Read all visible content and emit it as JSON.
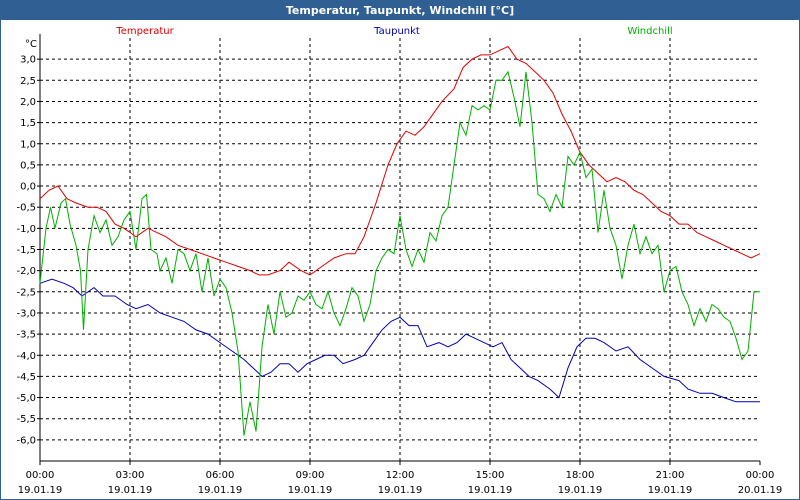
{
  "window": {
    "title": "Temperatur, Taupunkt, Windchill [°C]"
  },
  "chart_data": {
    "type": "line",
    "ylabel": "°C",
    "ylim": [
      -6.5,
      3.5
    ],
    "y_ticks": [
      3.0,
      2.5,
      2.0,
      1.5,
      1.0,
      0.5,
      0.0,
      -0.5,
      -1.0,
      -1.5,
      -2.0,
      -2.5,
      -3.0,
      -3.5,
      -4.0,
      -4.5,
      -5.0,
      -5.5,
      -6.0
    ],
    "y_tick_labels": [
      "3,0",
      "2,5",
      "2,0",
      "1,5",
      "1,0",
      "0,5",
      "0,0",
      "-0,5",
      "-1,0",
      "-1,5",
      "-2,0",
      "-2,5",
      "-3,0",
      "-3,5",
      "-4,0",
      "-4,5",
      "-5,0",
      "-5,5",
      "-6,0"
    ],
    "xlim": [
      0,
      24
    ],
    "x_ticks": [
      {
        "hour": 0,
        "time": "00:00",
        "date": "19.01.19"
      },
      {
        "hour": 3,
        "time": "03:00",
        "date": "19.01.19"
      },
      {
        "hour": 6,
        "time": "06:00",
        "date": "19.01.19"
      },
      {
        "hour": 9,
        "time": "09:00",
        "date": "19.01.19"
      },
      {
        "hour": 12,
        "time": "12:00",
        "date": "19.01.19"
      },
      {
        "hour": 15,
        "time": "15:00",
        "date": "19.01.19"
      },
      {
        "hour": 18,
        "time": "18:00",
        "date": "19.01.19"
      },
      {
        "hour": 21,
        "time": "21:00",
        "date": "19.01.19"
      },
      {
        "hour": 24,
        "time": "00:00",
        "date": "20.01.19"
      }
    ],
    "grid": true,
    "series": [
      {
        "name": "Temperatur",
        "color": "#e00000",
        "points": [
          [
            0,
            -0.3
          ],
          [
            0.3,
            -0.1
          ],
          [
            0.6,
            0.0
          ],
          [
            0.9,
            -0.3
          ],
          [
            1.2,
            -0.4
          ],
          [
            1.6,
            -0.5
          ],
          [
            1.9,
            -0.5
          ],
          [
            2.2,
            -0.6
          ],
          [
            2.5,
            -0.9
          ],
          [
            2.8,
            -1.0
          ],
          [
            3.2,
            -1.2
          ],
          [
            3.6,
            -1.0
          ],
          [
            3.9,
            -1.1
          ],
          [
            4.2,
            -1.2
          ],
          [
            4.6,
            -1.4
          ],
          [
            5,
            -1.5
          ],
          [
            5.4,
            -1.6
          ],
          [
            5.8,
            -1.7
          ],
          [
            6.2,
            -1.8
          ],
          [
            6.6,
            -1.9
          ],
          [
            7,
            -2.0
          ],
          [
            7.3,
            -2.1
          ],
          [
            7.6,
            -2.1
          ],
          [
            8.0,
            -2.0
          ],
          [
            8.3,
            -1.8
          ],
          [
            8.7,
            -2.0
          ],
          [
            9.0,
            -2.1
          ],
          [
            9.4,
            -1.9
          ],
          [
            9.8,
            -1.7
          ],
          [
            10.2,
            -1.6
          ],
          [
            10.5,
            -1.6
          ],
          [
            10.8,
            -1.2
          ],
          [
            11.2,
            -0.4
          ],
          [
            11.6,
            0.5
          ],
          [
            11.9,
            1.0
          ],
          [
            12.2,
            1.3
          ],
          [
            12.5,
            1.2
          ],
          [
            12.8,
            1.4
          ],
          [
            13.1,
            1.7
          ],
          [
            13.4,
            2.0
          ],
          [
            13.8,
            2.3
          ],
          [
            14.1,
            2.8
          ],
          [
            14.4,
            3.0
          ],
          [
            14.7,
            3.1
          ],
          [
            15.0,
            3.1
          ],
          [
            15.3,
            3.2
          ],
          [
            15.6,
            3.3
          ],
          [
            15.9,
            3.0
          ],
          [
            16.2,
            2.9
          ],
          [
            16.5,
            2.7
          ],
          [
            16.8,
            2.5
          ],
          [
            17.1,
            2.2
          ],
          [
            17.4,
            1.7
          ],
          [
            17.7,
            1.3
          ],
          [
            18.0,
            0.8
          ],
          [
            18.3,
            0.5
          ],
          [
            18.6,
            0.3
          ],
          [
            18.9,
            0.1
          ],
          [
            19.2,
            0.2
          ],
          [
            19.5,
            0.1
          ],
          [
            19.8,
            -0.1
          ],
          [
            20.1,
            -0.2
          ],
          [
            20.4,
            -0.4
          ],
          [
            20.7,
            -0.6
          ],
          [
            21.0,
            -0.7
          ],
          [
            21.3,
            -0.9
          ],
          [
            21.6,
            -0.9
          ],
          [
            21.9,
            -1.1
          ],
          [
            22.2,
            -1.2
          ],
          [
            22.5,
            -1.3
          ],
          [
            22.8,
            -1.4
          ],
          [
            23.1,
            -1.5
          ],
          [
            23.4,
            -1.6
          ],
          [
            23.7,
            -1.7
          ],
          [
            24.0,
            -1.6
          ]
        ]
      },
      {
        "name": "Taupunkt",
        "color": "#0000b0",
        "points": [
          [
            0,
            -2.3
          ],
          [
            0.4,
            -2.2
          ],
          [
            0.8,
            -2.3
          ],
          [
            1.1,
            -2.4
          ],
          [
            1.4,
            -2.6
          ],
          [
            1.8,
            -2.4
          ],
          [
            2.1,
            -2.6
          ],
          [
            2.5,
            -2.6
          ],
          [
            2.9,
            -2.8
          ],
          [
            3.2,
            -2.9
          ],
          [
            3.6,
            -2.8
          ],
          [
            4.0,
            -3.0
          ],
          [
            4.4,
            -3.1
          ],
          [
            4.8,
            -3.2
          ],
          [
            5.2,
            -3.4
          ],
          [
            5.6,
            -3.5
          ],
          [
            6.0,
            -3.7
          ],
          [
            6.4,
            -3.9
          ],
          [
            6.8,
            -4.1
          ],
          [
            7.1,
            -4.3
          ],
          [
            7.4,
            -4.5
          ],
          [
            7.7,
            -4.4
          ],
          [
            8.0,
            -4.2
          ],
          [
            8.3,
            -4.2
          ],
          [
            8.6,
            -4.4
          ],
          [
            8.9,
            -4.2
          ],
          [
            9.2,
            -4.1
          ],
          [
            9.5,
            -4.0
          ],
          [
            9.8,
            -4.0
          ],
          [
            10.1,
            -4.2
          ],
          [
            10.5,
            -4.1
          ],
          [
            10.8,
            -4.0
          ],
          [
            11.1,
            -3.7
          ],
          [
            11.4,
            -3.4
          ],
          [
            11.7,
            -3.2
          ],
          [
            12.0,
            -3.1
          ],
          [
            12.3,
            -3.3
          ],
          [
            12.6,
            -3.3
          ],
          [
            12.9,
            -3.8
          ],
          [
            13.3,
            -3.7
          ],
          [
            13.6,
            -3.8
          ],
          [
            13.9,
            -3.7
          ],
          [
            14.2,
            -3.5
          ],
          [
            14.5,
            -3.6
          ],
          [
            14.8,
            -3.7
          ],
          [
            15.1,
            -3.8
          ],
          [
            15.4,
            -3.7
          ],
          [
            15.7,
            -4.1
          ],
          [
            16.0,
            -4.3
          ],
          [
            16.3,
            -4.5
          ],
          [
            16.6,
            -4.6
          ],
          [
            17.0,
            -4.8
          ],
          [
            17.3,
            -5.0
          ],
          [
            17.6,
            -4.3
          ],
          [
            17.9,
            -3.8
          ],
          [
            18.2,
            -3.6
          ],
          [
            18.5,
            -3.6
          ],
          [
            18.8,
            -3.7
          ],
          [
            19.2,
            -3.9
          ],
          [
            19.6,
            -3.8
          ],
          [
            20.0,
            -4.1
          ],
          [
            20.4,
            -4.3
          ],
          [
            20.8,
            -4.5
          ],
          [
            21.3,
            -4.6
          ],
          [
            21.6,
            -4.8
          ],
          [
            22.0,
            -4.9
          ],
          [
            22.4,
            -4.9
          ],
          [
            22.8,
            -5.0
          ],
          [
            23.2,
            -5.1
          ],
          [
            23.6,
            -5.1
          ],
          [
            24.0,
            -5.1
          ]
        ]
      },
      {
        "name": "Windchill",
        "color": "#00b000",
        "points": [
          [
            0,
            -2.3
          ],
          [
            0.2,
            -1.0
          ],
          [
            0.35,
            -0.5
          ],
          [
            0.5,
            -1.0
          ],
          [
            0.7,
            -0.4
          ],
          [
            0.85,
            -0.3
          ],
          [
            1.0,
            -0.9
          ],
          [
            1.2,
            -1.4
          ],
          [
            1.35,
            -2.0
          ],
          [
            1.45,
            -3.4
          ],
          [
            1.6,
            -1.5
          ],
          [
            1.8,
            -0.7
          ],
          [
            2.0,
            -1.1
          ],
          [
            2.2,
            -0.8
          ],
          [
            2.4,
            -1.4
          ],
          [
            2.6,
            -1.2
          ],
          [
            2.8,
            -0.8
          ],
          [
            3.0,
            -0.6
          ],
          [
            3.2,
            -1.5
          ],
          [
            3.4,
            -0.3
          ],
          [
            3.55,
            -0.2
          ],
          [
            3.7,
            -1.5
          ],
          [
            3.9,
            -1.6
          ],
          [
            4.0,
            -2.0
          ],
          [
            4.2,
            -1.7
          ],
          [
            4.4,
            -2.3
          ],
          [
            4.6,
            -1.5
          ],
          [
            4.8,
            -1.6
          ],
          [
            5.0,
            -2.0
          ],
          [
            5.2,
            -1.6
          ],
          [
            5.4,
            -2.5
          ],
          [
            5.6,
            -1.7
          ],
          [
            5.8,
            -2.6
          ],
          [
            6.0,
            -2.2
          ],
          [
            6.2,
            -2.4
          ],
          [
            6.4,
            -3.0
          ],
          [
            6.6,
            -3.9
          ],
          [
            6.8,
            -5.9
          ],
          [
            7.0,
            -5.1
          ],
          [
            7.2,
            -5.8
          ],
          [
            7.4,
            -3.8
          ],
          [
            7.6,
            -2.8
          ],
          [
            7.8,
            -3.5
          ],
          [
            8.0,
            -2.5
          ],
          [
            8.2,
            -3.1
          ],
          [
            8.4,
            -3.0
          ],
          [
            8.6,
            -2.6
          ],
          [
            8.8,
            -2.7
          ],
          [
            9.0,
            -2.5
          ],
          [
            9.2,
            -2.8
          ],
          [
            9.4,
            -2.9
          ],
          [
            9.6,
            -2.5
          ],
          [
            9.8,
            -3.0
          ],
          [
            10.0,
            -3.3
          ],
          [
            10.2,
            -2.9
          ],
          [
            10.4,
            -2.4
          ],
          [
            10.6,
            -2.6
          ],
          [
            10.8,
            -3.2
          ],
          [
            11.0,
            -2.8
          ],
          [
            11.2,
            -2.0
          ],
          [
            11.4,
            -1.7
          ],
          [
            11.6,
            -1.5
          ],
          [
            11.8,
            -1.6
          ],
          [
            12.0,
            -0.7
          ],
          [
            12.2,
            -1.5
          ],
          [
            12.4,
            -1.9
          ],
          [
            12.6,
            -1.5
          ],
          [
            12.8,
            -1.8
          ],
          [
            13.0,
            -1.1
          ],
          [
            13.2,
            -1.3
          ],
          [
            13.4,
            -0.7
          ],
          [
            13.6,
            -0.5
          ],
          [
            13.8,
            0.5
          ],
          [
            14.0,
            1.5
          ],
          [
            14.2,
            1.2
          ],
          [
            14.4,
            1.9
          ],
          [
            14.6,
            1.8
          ],
          [
            14.8,
            1.9
          ],
          [
            15.0,
            1.8
          ],
          [
            15.2,
            2.5
          ],
          [
            15.4,
            2.5
          ],
          [
            15.6,
            2.7
          ],
          [
            15.8,
            2.1
          ],
          [
            16.0,
            1.4
          ],
          [
            16.2,
            2.7
          ],
          [
            16.4,
            1.5
          ],
          [
            16.6,
            -0.2
          ],
          [
            16.8,
            -0.3
          ],
          [
            17.0,
            -0.6
          ],
          [
            17.2,
            -0.2
          ],
          [
            17.4,
            -0.5
          ],
          [
            17.6,
            0.7
          ],
          [
            17.8,
            0.5
          ],
          [
            18.0,
            0.8
          ],
          [
            18.2,
            0.2
          ],
          [
            18.4,
            0.4
          ],
          [
            18.6,
            -1.1
          ],
          [
            18.8,
            -0.1
          ],
          [
            19.0,
            -1.0
          ],
          [
            19.2,
            -1.4
          ],
          [
            19.4,
            -2.2
          ],
          [
            19.6,
            -1.4
          ],
          [
            19.8,
            -0.9
          ],
          [
            20.0,
            -1.6
          ],
          [
            20.2,
            -1.2
          ],
          [
            20.4,
            -1.6
          ],
          [
            20.6,
            -1.4
          ],
          [
            20.8,
            -2.5
          ],
          [
            21.0,
            -2.0
          ],
          [
            21.2,
            -1.9
          ],
          [
            21.4,
            -2.5
          ],
          [
            21.6,
            -2.8
          ],
          [
            21.8,
            -3.3
          ],
          [
            22.0,
            -2.9
          ],
          [
            22.2,
            -3.2
          ],
          [
            22.4,
            -2.8
          ],
          [
            22.6,
            -2.9
          ],
          [
            22.8,
            -3.1
          ],
          [
            23.0,
            -3.2
          ],
          [
            23.2,
            -3.6
          ],
          [
            23.4,
            -4.1
          ],
          [
            23.6,
            -3.9
          ],
          [
            23.8,
            -2.5
          ],
          [
            24.0,
            -2.5
          ]
        ]
      }
    ]
  }
}
